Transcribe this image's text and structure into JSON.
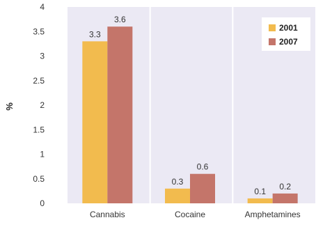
{
  "chart_data": {
    "type": "bar",
    "categories": [
      "Cannabis",
      "Cocaine",
      "Amphetamines"
    ],
    "series": [
      {
        "name": "2001",
        "color": "#f2bb4e",
        "values": [
          3.3,
          0.3,
          0.1
        ]
      },
      {
        "name": "2007",
        "color": "#c4756a",
        "values": [
          3.6,
          0.6,
          0.2
        ]
      }
    ],
    "ylabel": "%",
    "ylim": [
      0,
      4
    ],
    "yticks": [
      "0",
      "0.5",
      "1",
      "1.5",
      "2",
      "2.5",
      "3",
      "3.5",
      "4"
    ],
    "ytick_values": [
      0,
      0.5,
      1,
      1.5,
      2,
      2.5,
      3,
      3.5,
      4
    ],
    "data_labels": [
      [
        "3.3",
        "0.3",
        "0.1"
      ],
      [
        "3.6",
        "0.6",
        "0.2"
      ]
    ],
    "grid": false,
    "legend_position": "top-right",
    "plot_background": "#ebe9f4"
  }
}
